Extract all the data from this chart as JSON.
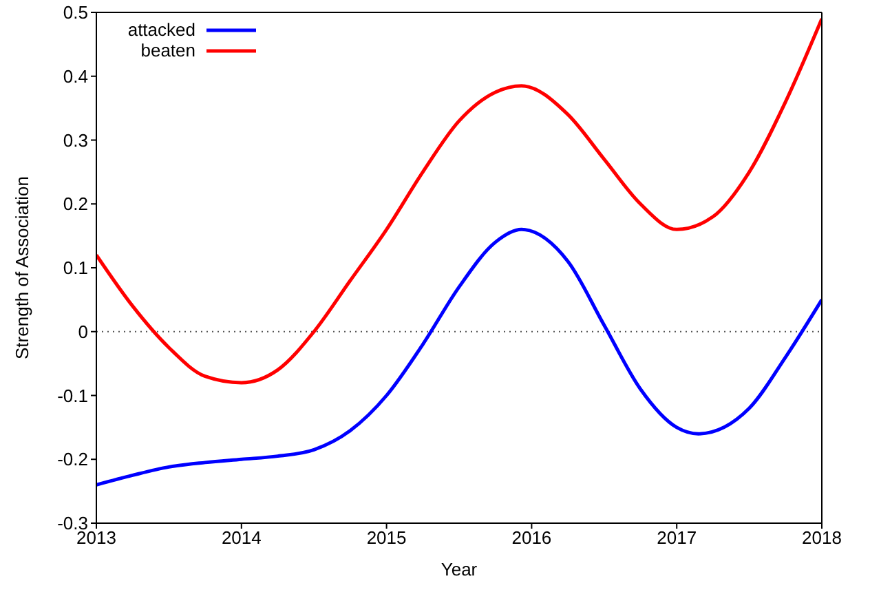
{
  "chart_data": {
    "type": "line",
    "xlabel": "Year",
    "ylabel": "Strength of Association",
    "xlim": [
      2013,
      2018
    ],
    "xticks": [
      2013,
      2014,
      2015,
      2016,
      2017,
      2018
    ],
    "ylim": [
      -0.3,
      0.5
    ],
    "yticks": [
      -0.3,
      -0.2,
      -0.1,
      0,
      0.1,
      0.2,
      0.3,
      0.4,
      0.5
    ],
    "grid": false,
    "legend": "top left",
    "marker": "none",
    "line_style": "solid",
    "ref_lines": [
      {
        "axis": "y",
        "value": 0,
        "line_style": "dotted",
        "color": "#555555"
      }
    ],
    "series": [
      {
        "name": "attacked",
        "color": "#0000ff",
        "x": [
          2013,
          2013.25,
          2013.5,
          2013.75,
          2014,
          2014.25,
          2014.5,
          2014.75,
          2015,
          2015.25,
          2015.5,
          2015.75,
          2015.93,
          2016.25,
          2016.5,
          2016.75,
          2017,
          2017.15,
          2017.5,
          2017.75,
          2018
        ],
        "values": [
          -0.24,
          -0.225,
          -0.212,
          -0.205,
          -0.2,
          -0.195,
          -0.185,
          -0.155,
          -0.1,
          -0.02,
          0.07,
          0.14,
          0.16,
          0.11,
          0.01,
          -0.09,
          -0.15,
          -0.16,
          -0.12,
          -0.04,
          0.05
        ]
      },
      {
        "name": "beaten",
        "color": "#ff0000",
        "x": [
          2013,
          2013.25,
          2013.5,
          2013.75,
          2014,
          2014.25,
          2014.5,
          2014.75,
          2015,
          2015.25,
          2015.5,
          2015.75,
          2015.93,
          2016.25,
          2016.5,
          2016.75,
          2017,
          2017.25,
          2017.5,
          2017.75,
          2018
        ],
        "values": [
          0.12,
          0.04,
          -0.025,
          -0.07,
          -0.08,
          -0.06,
          0,
          0.08,
          0.16,
          0.25,
          0.33,
          0.375,
          0.385,
          0.34,
          0.27,
          0.2,
          0.16,
          0.18,
          0.25,
          0.36,
          0.49
        ]
      }
    ]
  }
}
